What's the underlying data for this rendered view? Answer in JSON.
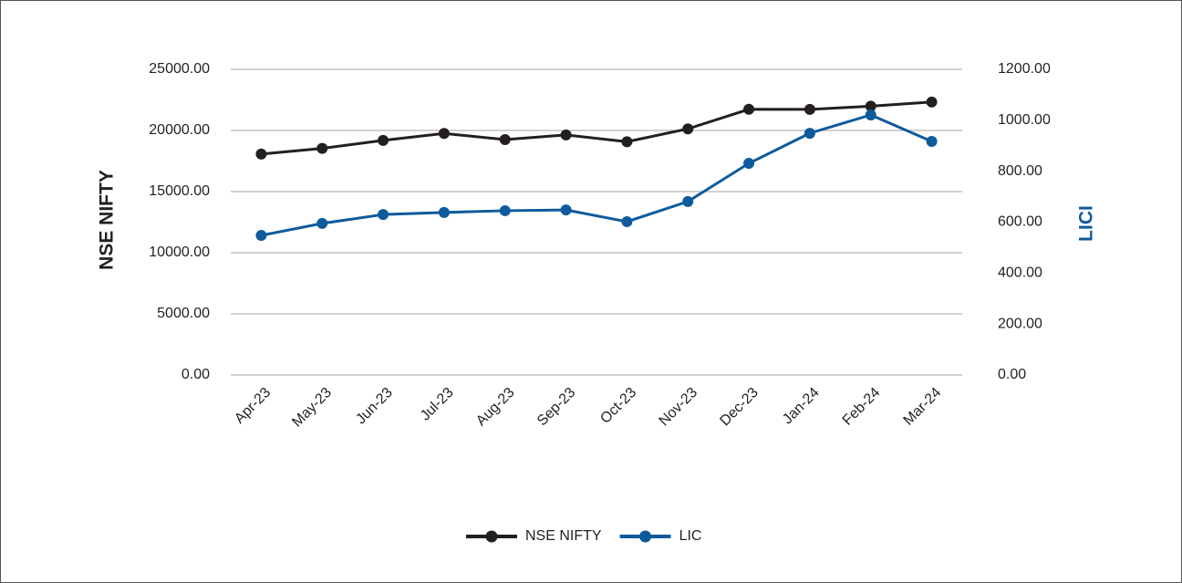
{
  "chart_data": {
    "type": "line",
    "categories": [
      "Apr-23",
      "May-23",
      "Jun-23",
      "Jul-23",
      "Aug-23",
      "Sep-23",
      "Oct-23",
      "Nov-23",
      "Dec-23",
      "Jan-24",
      "Feb-24",
      "Mar-24"
    ],
    "series": [
      {
        "name": "NSE NIFTY",
        "color": "#231f20",
        "axis": "y",
        "values": [
          18065,
          18534,
          19189,
          19754,
          19254,
          19638,
          19079,
          20133,
          21731,
          21725,
          21983,
          22327
        ]
      },
      {
        "name": "LIC",
        "color": "#0f5a9c",
        "axis": "y2",
        "values": [
          548,
          595,
          630,
          638,
          645,
          648,
          602,
          681,
          831,
          949,
          1021,
          917
        ]
      }
    ],
    "ylabel": "NSE NIFTY",
    "y2label": "LICI",
    "ylim": [
      0,
      25000
    ],
    "yticks": [
      {
        "value": 0,
        "label": "0.00"
      },
      {
        "value": 5000,
        "label": "5000.00"
      },
      {
        "value": 10000,
        "label": "10000.00"
      },
      {
        "value": 15000,
        "label": "15000.00"
      },
      {
        "value": 20000,
        "label": "20000.00"
      },
      {
        "value": 25000,
        "label": "25000.00"
      }
    ],
    "y2lim": [
      0,
      1200
    ],
    "y2ticks": [
      {
        "value": 0,
        "label": "0.00"
      },
      {
        "value": 200,
        "label": "200.00"
      },
      {
        "value": 400,
        "label": "400.00"
      },
      {
        "value": 600,
        "label": "600.00"
      },
      {
        "value": 800,
        "label": "800.00"
      },
      {
        "value": 1000,
        "label": "1000.00"
      },
      {
        "value": 1200,
        "label": "1200.00"
      }
    ],
    "grid": true,
    "legend": "bottom"
  }
}
